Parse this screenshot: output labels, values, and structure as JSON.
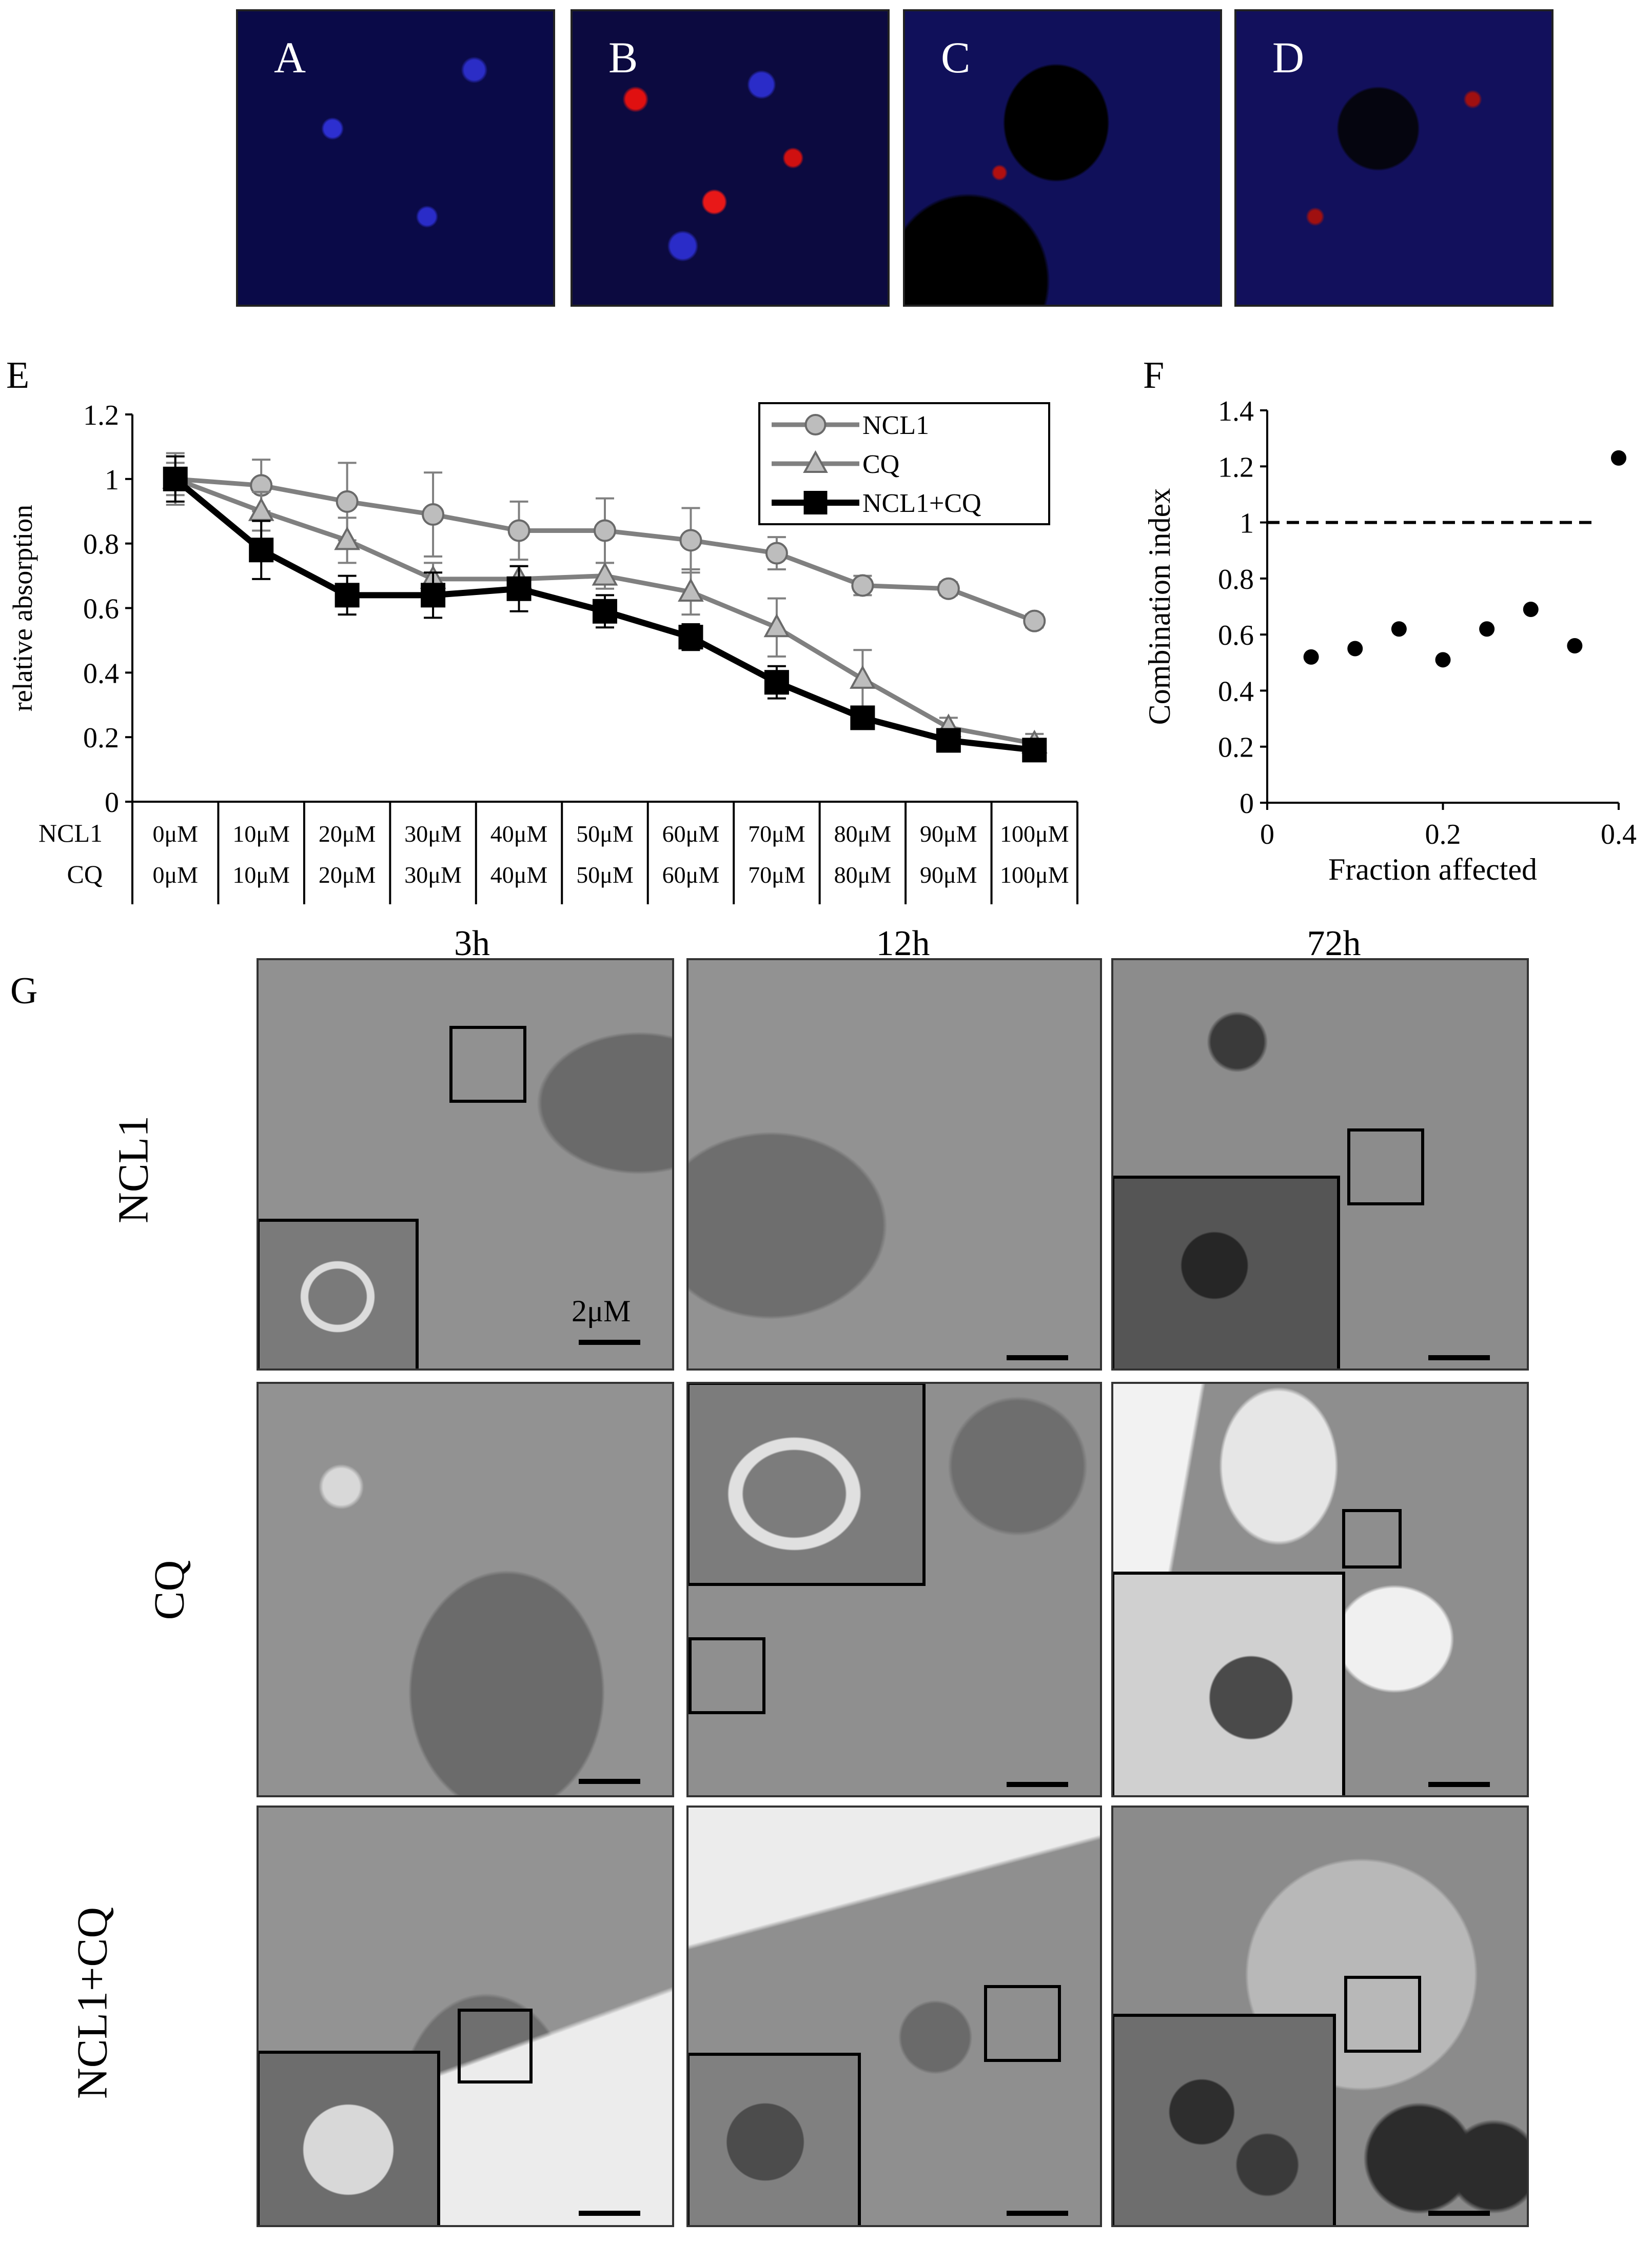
{
  "panels": {
    "fluorescence": [
      "A",
      "B",
      "C",
      "D"
    ],
    "E": "E",
    "F": "F",
    "G": "G"
  },
  "chart_data": [
    {
      "panel": "E",
      "type": "line",
      "ylabel": "relative  absorption",
      "ylim": [
        0,
        1.2
      ],
      "yticks": [
        "0",
        "0.2",
        "0.4",
        "0.6",
        "0.8",
        "1",
        "1.2"
      ],
      "categories": [
        "0μM",
        "10μM",
        "20μM",
        "30μM",
        "40μM",
        "50μM",
        "60μM",
        "70μM",
        "80μM",
        "90μM",
        "100μM"
      ],
      "table_rows": [
        {
          "label": "NCL1",
          "values": [
            "0μM",
            "10μM",
            "20μM",
            "30μM",
            "40μM",
            "50μM",
            "60μM",
            "70μM",
            "80μM",
            "90μM",
            "100μM"
          ]
        },
        {
          "label": "CQ",
          "values": [
            "0μM",
            "10μM",
            "20μM",
            "30μM",
            "40μM",
            "50μM",
            "60μM",
            "70μM",
            "80μM",
            "90μM",
            "100μM"
          ]
        }
      ],
      "legend_position": "top-right",
      "series": [
        {
          "name": "NCL1",
          "marker": "circle",
          "color": "#808080",
          "values": [
            1.0,
            0.98,
            0.93,
            0.89,
            0.84,
            0.84,
            0.81,
            0.77,
            0.67,
            0.66,
            0.56
          ],
          "errors": [
            0.08,
            0.08,
            0.12,
            0.13,
            0.09,
            0.1,
            0.1,
            0.05,
            0.03,
            0.02,
            0.02
          ]
        },
        {
          "name": "CQ",
          "marker": "triangle",
          "color": "#808080",
          "values": [
            1.0,
            0.9,
            0.81,
            0.69,
            0.69,
            0.7,
            0.65,
            0.54,
            0.38,
            0.23,
            0.18
          ],
          "errors": [
            0.05,
            0.06,
            0.07,
            0.05,
            0.04,
            0.04,
            0.07,
            0.09,
            0.09,
            0.03,
            0.03
          ]
        },
        {
          "name": "NCL1+CQ",
          "marker": "square",
          "color": "#000000",
          "values": [
            1.0,
            0.78,
            0.64,
            0.64,
            0.66,
            0.59,
            0.51,
            0.37,
            0.26,
            0.19,
            0.16
          ],
          "errors": [
            0.07,
            0.09,
            0.06,
            0.07,
            0.07,
            0.05,
            0.04,
            0.05,
            0.03,
            0.02,
            0.03
          ]
        }
      ]
    },
    {
      "panel": "F",
      "type": "scatter",
      "xlabel": "Fraction  affected",
      "ylabel": "Combination  index",
      "xlim": [
        0,
        0.4
      ],
      "ylim": [
        0,
        1.4
      ],
      "xticks": [
        "0",
        "0.2",
        "0.4"
      ],
      "yticks": [
        "0",
        "0.2",
        "0.4",
        "0.6",
        "0.8",
        "1",
        "1.2",
        "1.4"
      ],
      "reference_line": 1,
      "x": [
        0.05,
        0.1,
        0.15,
        0.2,
        0.25,
        0.3,
        0.35,
        0.4
      ],
      "y": [
        0.52,
        0.55,
        0.62,
        0.51,
        0.62,
        0.69,
        0.56,
        1.23
      ]
    }
  ],
  "em_grid": {
    "columns": [
      "3h",
      "12h",
      "72h"
    ],
    "rows": [
      "NCL1",
      "CQ",
      "NCL1+CQ"
    ],
    "scale_label": "2μM"
  }
}
